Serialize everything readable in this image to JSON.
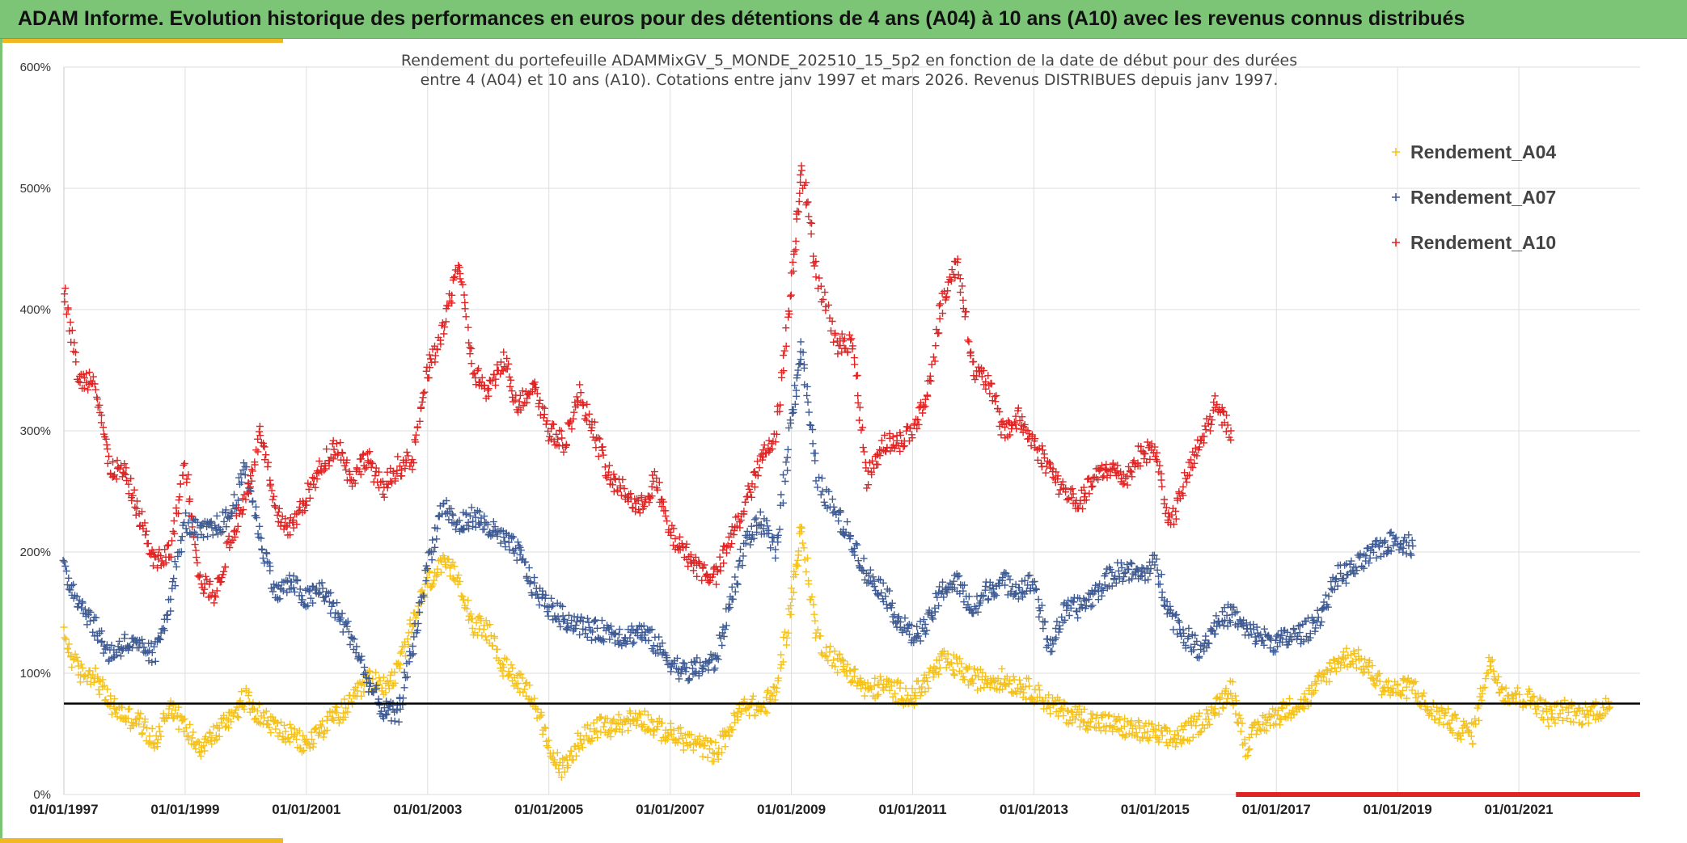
{
  "header": {
    "title": "ADAM Informe. Evolution historique des performances en euros pour des détentions de 4 ans (A04) à 10 ans (A10) avec les revenus connus distribués"
  },
  "chart_data": {
    "type": "scatter",
    "title_lines": [
      "Rendement du portefeuille ADAMMixGV_5_MONDE_202510_15_5p2  en fonction de la date de début pour des durées",
      "entre 4 (A04) et 10 ans (A10). Cotations entre janv 1997 et mars 2026. Revenus DISTRIBUES depuis janv 1997."
    ],
    "xlabel": "",
    "ylabel": "",
    "x_range": [
      "01/01/1997",
      "31/12/2022"
    ],
    "ylim": [
      0,
      600
    ],
    "y_ticks": [
      "0%",
      "100%",
      "200%",
      "300%",
      "400%",
      "500%",
      "600%"
    ],
    "x_tick_labels": [
      "01/01/1997",
      "01/01/1999",
      "01/01/2001",
      "01/01/2003",
      "01/01/2005",
      "01/01/2007",
      "01/01/2009",
      "01/01/2011",
      "01/01/2013",
      "01/01/2015",
      "01/01/2017",
      "01/01/2019",
      "01/01/2021"
    ],
    "grid": true,
    "legend_position": "top-right",
    "reference_line": {
      "y": 75,
      "color": "#000000"
    },
    "baseline_marker": {
      "from": "01/05/2016",
      "to": "31/12/2022",
      "y": 0,
      "color": "#e02424"
    },
    "series": [
      {
        "name": "Rendement_A04",
        "color": "#f5c21b",
        "marker": "+",
        "points": [
          [
            "1997-01",
            130
          ],
          [
            "1997-04",
            100
          ],
          [
            "1997-07",
            100
          ],
          [
            "1997-10",
            75
          ],
          [
            "1998-01",
            65
          ],
          [
            "1998-04",
            60
          ],
          [
            "1998-07",
            42
          ],
          [
            "1998-10",
            75
          ],
          [
            "1999-01",
            55
          ],
          [
            "1999-04",
            40
          ],
          [
            "1999-07",
            50
          ],
          [
            "1999-10",
            65
          ],
          [
            "2000-01",
            80
          ],
          [
            "2000-04",
            65
          ],
          [
            "2000-07",
            55
          ],
          [
            "2000-10",
            48
          ],
          [
            "2001-01",
            40
          ],
          [
            "2001-04",
            55
          ],
          [
            "2001-07",
            65
          ],
          [
            "2001-10",
            75
          ],
          [
            "2002-01",
            95
          ],
          [
            "2002-04",
            90
          ],
          [
            "2002-07",
            100
          ],
          [
            "2002-10",
            140
          ],
          [
            "2003-01",
            175
          ],
          [
            "2003-04",
            188
          ],
          [
            "2003-07",
            180
          ],
          [
            "2003-10",
            140
          ],
          [
            "2004-01",
            135
          ],
          [
            "2004-04",
            105
          ],
          [
            "2004-07",
            95
          ],
          [
            "2004-10",
            80
          ],
          [
            "2005-01",
            35
          ],
          [
            "2005-04",
            20
          ],
          [
            "2005-07",
            45
          ],
          [
            "2005-10",
            55
          ],
          [
            "2006-01",
            55
          ],
          [
            "2006-04",
            60
          ],
          [
            "2006-07",
            65
          ],
          [
            "2006-10",
            55
          ],
          [
            "2007-01",
            50
          ],
          [
            "2007-04",
            45
          ],
          [
            "2007-07",
            40
          ],
          [
            "2007-10",
            35
          ],
          [
            "2008-01",
            55
          ],
          [
            "2008-04",
            75
          ],
          [
            "2008-07",
            70
          ],
          [
            "2008-10",
            85
          ],
          [
            "2009-01",
            160
          ],
          [
            "2009-03",
            220
          ],
          [
            "2009-06",
            130
          ],
          [
            "2009-10",
            110
          ],
          [
            "2010-01",
            100
          ],
          [
            "2010-04",
            85
          ],
          [
            "2010-07",
            90
          ],
          [
            "2010-10",
            85
          ],
          [
            "2011-01",
            80
          ],
          [
            "2011-04",
            95
          ],
          [
            "2011-07",
            110
          ],
          [
            "2011-10",
            105
          ],
          [
            "2012-01",
            95
          ],
          [
            "2012-04",
            95
          ],
          [
            "2012-07",
            95
          ],
          [
            "2012-10",
            90
          ],
          [
            "2013-01",
            85
          ],
          [
            "2013-04",
            75
          ],
          [
            "2013-07",
            68
          ],
          [
            "2013-10",
            65
          ],
          [
            "2014-01",
            60
          ],
          [
            "2014-04",
            58
          ],
          [
            "2014-07",
            55
          ],
          [
            "2014-10",
            52
          ],
          [
            "2015-01",
            50
          ],
          [
            "2015-04",
            45
          ],
          [
            "2015-07",
            50
          ],
          [
            "2015-10",
            60
          ],
          [
            "2016-01",
            70
          ],
          [
            "2016-04",
            90
          ],
          [
            "2016-07",
            40
          ],
          [
            "2016-10",
            58
          ],
          [
            "2017-01",
            65
          ],
          [
            "2017-04",
            72
          ],
          [
            "2017-07",
            78
          ],
          [
            "2017-10",
            95
          ],
          [
            "2018-01",
            110
          ],
          [
            "2018-04",
            115
          ],
          [
            "2018-07",
            105
          ],
          [
            "2018-10",
            90
          ],
          [
            "2019-01",
            85
          ],
          [
            "2019-04",
            90
          ],
          [
            "2019-07",
            70
          ],
          [
            "2019-10",
            65
          ],
          [
            "2020-01",
            55
          ],
          [
            "2020-04",
            50
          ],
          [
            "2020-07",
            110
          ],
          [
            "2020-10",
            85
          ],
          [
            "2021-01",
            80
          ],
          [
            "2021-04",
            78
          ],
          [
            "2021-07",
            65
          ],
          [
            "2021-10",
            70
          ],
          [
            "2022-01",
            65
          ],
          [
            "2022-04",
            70
          ],
          [
            "2022-07",
            72
          ]
        ]
      },
      {
        "name": "Rendement_A07",
        "color": "#3f5b93",
        "marker": "+",
        "points": [
          [
            "1997-01",
            185
          ],
          [
            "1997-04",
            160
          ],
          [
            "1997-07",
            140
          ],
          [
            "1997-10",
            115
          ],
          [
            "1998-01",
            125
          ],
          [
            "1998-04",
            120
          ],
          [
            "1998-07",
            115
          ],
          [
            "1998-10",
            160
          ],
          [
            "1999-01",
            225
          ],
          [
            "1999-04",
            215
          ],
          [
            "1999-07",
            220
          ],
          [
            "1999-10",
            230
          ],
          [
            "2000-01",
            270
          ],
          [
            "2000-04",
            210
          ],
          [
            "2000-07",
            165
          ],
          [
            "2000-10",
            175
          ],
          [
            "2001-01",
            160
          ],
          [
            "2001-04",
            170
          ],
          [
            "2001-07",
            150
          ],
          [
            "2001-10",
            130
          ],
          [
            "2002-01",
            95
          ],
          [
            "2002-04",
            70
          ],
          [
            "2002-07",
            65
          ],
          [
            "2002-10",
            120
          ],
          [
            "2003-01",
            190
          ],
          [
            "2003-04",
            240
          ],
          [
            "2003-07",
            220
          ],
          [
            "2003-10",
            230
          ],
          [
            "2004-01",
            220
          ],
          [
            "2004-04",
            210
          ],
          [
            "2004-07",
            200
          ],
          [
            "2004-10",
            170
          ],
          [
            "2005-01",
            155
          ],
          [
            "2005-04",
            145
          ],
          [
            "2005-07",
            140
          ],
          [
            "2005-10",
            135
          ],
          [
            "2006-01",
            135
          ],
          [
            "2006-04",
            130
          ],
          [
            "2006-07",
            135
          ],
          [
            "2006-10",
            125
          ],
          [
            "2007-01",
            110
          ],
          [
            "2007-04",
            100
          ],
          [
            "2007-07",
            105
          ],
          [
            "2007-10",
            110
          ],
          [
            "2008-01",
            160
          ],
          [
            "2008-04",
            210
          ],
          [
            "2008-07",
            225
          ],
          [
            "2008-10",
            200
          ],
          [
            "2009-01",
            310
          ],
          [
            "2009-03",
            370
          ],
          [
            "2009-06",
            260
          ],
          [
            "2009-10",
            230
          ],
          [
            "2010-01",
            210
          ],
          [
            "2010-04",
            180
          ],
          [
            "2010-07",
            170
          ],
          [
            "2010-10",
            145
          ],
          [
            "2011-01",
            130
          ],
          [
            "2011-04",
            140
          ],
          [
            "2011-07",
            170
          ],
          [
            "2011-10",
            175
          ],
          [
            "2012-01",
            150
          ],
          [
            "2012-04",
            170
          ],
          [
            "2012-07",
            175
          ],
          [
            "2012-10",
            170
          ],
          [
            "2013-01",
            175
          ],
          [
            "2013-04",
            120
          ],
          [
            "2013-07",
            150
          ],
          [
            "2013-10",
            155
          ],
          [
            "2014-01",
            165
          ],
          [
            "2014-04",
            180
          ],
          [
            "2014-07",
            185
          ],
          [
            "2014-10",
            180
          ],
          [
            "2015-01",
            190
          ],
          [
            "2015-04",
            150
          ],
          [
            "2015-07",
            130
          ],
          [
            "2015-10",
            120
          ],
          [
            "2016-01",
            140
          ],
          [
            "2016-04",
            150
          ],
          [
            "2016-07",
            135
          ],
          [
            "2016-10",
            130
          ],
          [
            "2017-01",
            125
          ],
          [
            "2017-04",
            130
          ],
          [
            "2017-07",
            135
          ],
          [
            "2017-10",
            150
          ],
          [
            "2018-01",
            180
          ],
          [
            "2018-04",
            185
          ],
          [
            "2018-07",
            195
          ],
          [
            "2018-10",
            205
          ],
          [
            "2019-01",
            210
          ],
          [
            "2019-04",
            205
          ]
        ]
      },
      {
        "name": "Rendement_A10",
        "color": "#e02424",
        "marker": "+",
        "points": [
          [
            "1997-01",
            420
          ],
          [
            "1997-04",
            340
          ],
          [
            "1997-07",
            345
          ],
          [
            "1997-10",
            270
          ],
          [
            "1998-01",
            265
          ],
          [
            "1998-04",
            230
          ],
          [
            "1998-07",
            190
          ],
          [
            "1998-10",
            200
          ],
          [
            "1999-01",
            275
          ],
          [
            "1999-04",
            175
          ],
          [
            "1999-07",
            165
          ],
          [
            "1999-10",
            210
          ],
          [
            "2000-01",
            245
          ],
          [
            "2000-04",
            300
          ],
          [
            "2000-07",
            230
          ],
          [
            "2000-10",
            220
          ],
          [
            "2001-01",
            245
          ],
          [
            "2001-04",
            270
          ],
          [
            "2001-07",
            290
          ],
          [
            "2001-10",
            260
          ],
          [
            "2002-01",
            280
          ],
          [
            "2002-04",
            250
          ],
          [
            "2002-07",
            270
          ],
          [
            "2002-10",
            275
          ],
          [
            "2003-01",
            350
          ],
          [
            "2003-04",
            380
          ],
          [
            "2003-07",
            440
          ],
          [
            "2003-10",
            350
          ],
          [
            "2004-01",
            330
          ],
          [
            "2004-04",
            360
          ],
          [
            "2004-07",
            320
          ],
          [
            "2004-10",
            340
          ],
          [
            "2005-01",
            300
          ],
          [
            "2005-04",
            290
          ],
          [
            "2005-07",
            330
          ],
          [
            "2005-10",
            300
          ],
          [
            "2006-01",
            260
          ],
          [
            "2006-04",
            250
          ],
          [
            "2006-07",
            235
          ],
          [
            "2006-10",
            260
          ],
          [
            "2007-01",
            215
          ],
          [
            "2007-04",
            200
          ],
          [
            "2007-07",
            185
          ],
          [
            "2007-10",
            180
          ],
          [
            "2008-01",
            210
          ],
          [
            "2008-04",
            240
          ],
          [
            "2008-07",
            275
          ],
          [
            "2008-10",
            300
          ],
          [
            "2009-01",
            420
          ],
          [
            "2009-03",
            520
          ],
          [
            "2009-06",
            430
          ],
          [
            "2009-10",
            370
          ],
          [
            "2010-01",
            375
          ],
          [
            "2010-04",
            260
          ],
          [
            "2010-07",
            290
          ],
          [
            "2010-10",
            290
          ],
          [
            "2011-01",
            300
          ],
          [
            "2011-04",
            330
          ],
          [
            "2011-07",
            410
          ],
          [
            "2011-10",
            440
          ],
          [
            "2012-01",
            350
          ],
          [
            "2012-04",
            340
          ],
          [
            "2012-07",
            300
          ],
          [
            "2012-10",
            310
          ],
          [
            "2013-01",
            290
          ],
          [
            "2013-04",
            270
          ],
          [
            "2013-07",
            250
          ],
          [
            "2013-10",
            240
          ],
          [
            "2014-01",
            260
          ],
          [
            "2014-04",
            270
          ],
          [
            "2014-07",
            260
          ],
          [
            "2014-10",
            280
          ],
          [
            "2015-01",
            285
          ],
          [
            "2015-04",
            220
          ],
          [
            "2015-07",
            260
          ],
          [
            "2015-10",
            290
          ],
          [
            "2016-01",
            320
          ],
          [
            "2016-04",
            300
          ]
        ]
      }
    ]
  }
}
